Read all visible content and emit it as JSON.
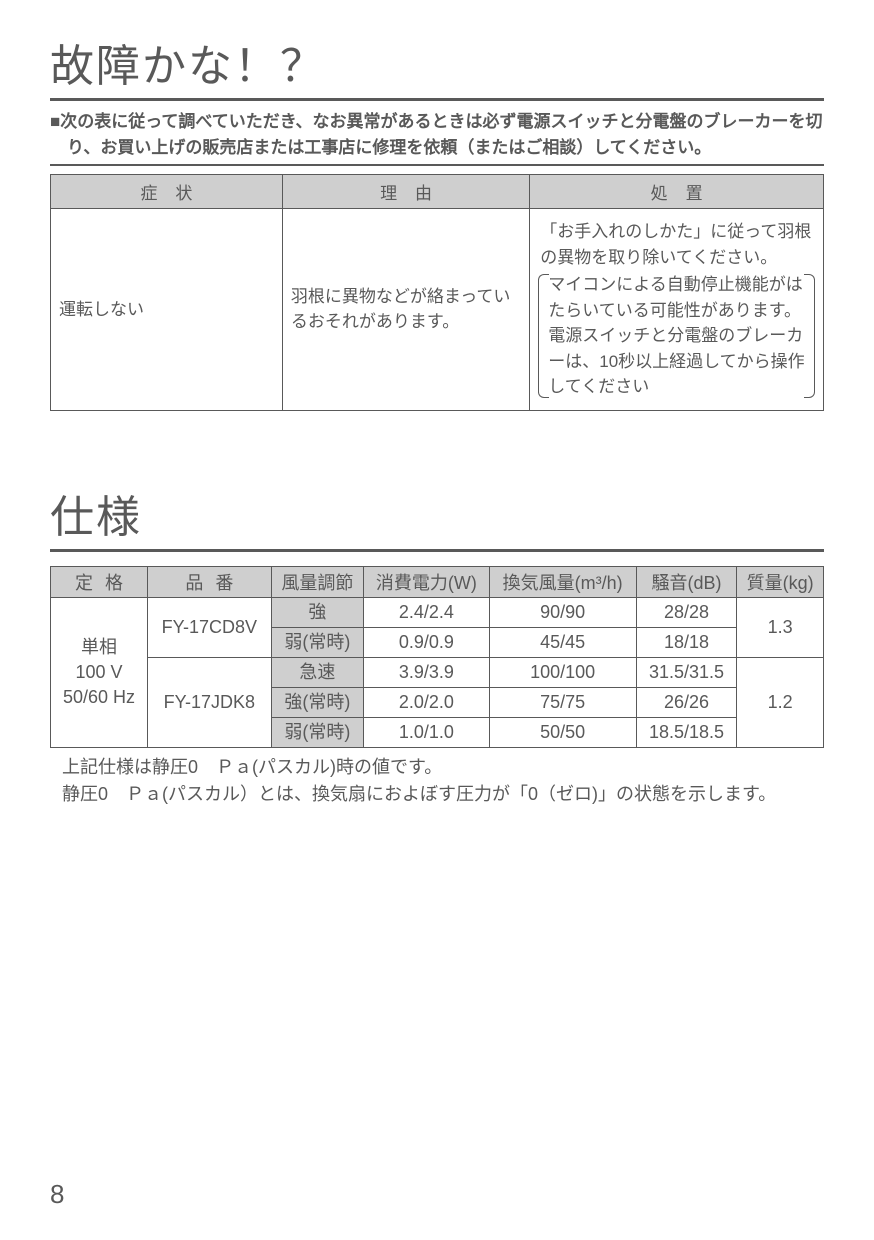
{
  "titles": {
    "troubleshoot": "故障かな！？",
    "spec": "仕様"
  },
  "intro": "■次の表に従って調べていただき、なお異常があるときは必ず電源スイッチと分電盤のブレーカーを切り、お買い上げの販売店または工事店に修理を依頼（またはご相談）してください。",
  "troubleshoot_table": {
    "headers": {
      "symptom": "症状",
      "reason": "理由",
      "remedy": "処置"
    },
    "row": {
      "symptom": "運転しない",
      "reason": "羽根に異物などが絡まっているおそれがあります。",
      "remedy_line1": "「お手入れのしかた」に従って羽根の異物を取り除いてください。",
      "remedy_bracket": "マイコンによる自動停止機能がはたらいている可能性があります。電源スイッチと分電盤のブレーカーは、10秒以上経過してから操作してください"
    }
  },
  "spec_table": {
    "headers": {
      "rating": "定格",
      "model": "品番",
      "airflow_mode": "風量調節",
      "power": "消費電力(W)",
      "ventilation": "換気風量(m³/h)",
      "noise": "騒音(dB)",
      "mass": "質量(kg)"
    },
    "rating_lines": [
      "単相",
      "100 V",
      "50/60 Hz"
    ],
    "products": [
      {
        "model": "FY-17CD8V",
        "mass": "1.3",
        "modes": [
          {
            "mode": "強",
            "power": "2.4/2.4",
            "vent": "90/90",
            "noise": "28/28"
          },
          {
            "mode": "弱(常時)",
            "power": "0.9/0.9",
            "vent": "45/45",
            "noise": "18/18"
          }
        ]
      },
      {
        "model": "FY-17JDK8",
        "mass": "1.2",
        "modes": [
          {
            "mode": "急速",
            "power": "3.9/3.9",
            "vent": "100/100",
            "noise": "31.5/31.5"
          },
          {
            "mode": "強(常時)",
            "power": "2.0/2.0",
            "vent": "75/75",
            "noise": "26/26"
          },
          {
            "mode": "弱(常時)",
            "power": "1.0/1.0",
            "vent": "50/50",
            "noise": "18.5/18.5"
          }
        ]
      }
    ]
  },
  "notes": {
    "line1": "上記仕様は静圧0　Ｐａ(パスカル)時の値です。",
    "line2": "静圧0　Ｐａ(パスカル）とは、換気扇におよぼす圧力が「0（ゼロ)」の状態を示します。"
  },
  "page_number": "8",
  "colors": {
    "text": "#595959",
    "header_bg": "#cfcfcf",
    "border": "#595959",
    "background": "#ffffff"
  }
}
